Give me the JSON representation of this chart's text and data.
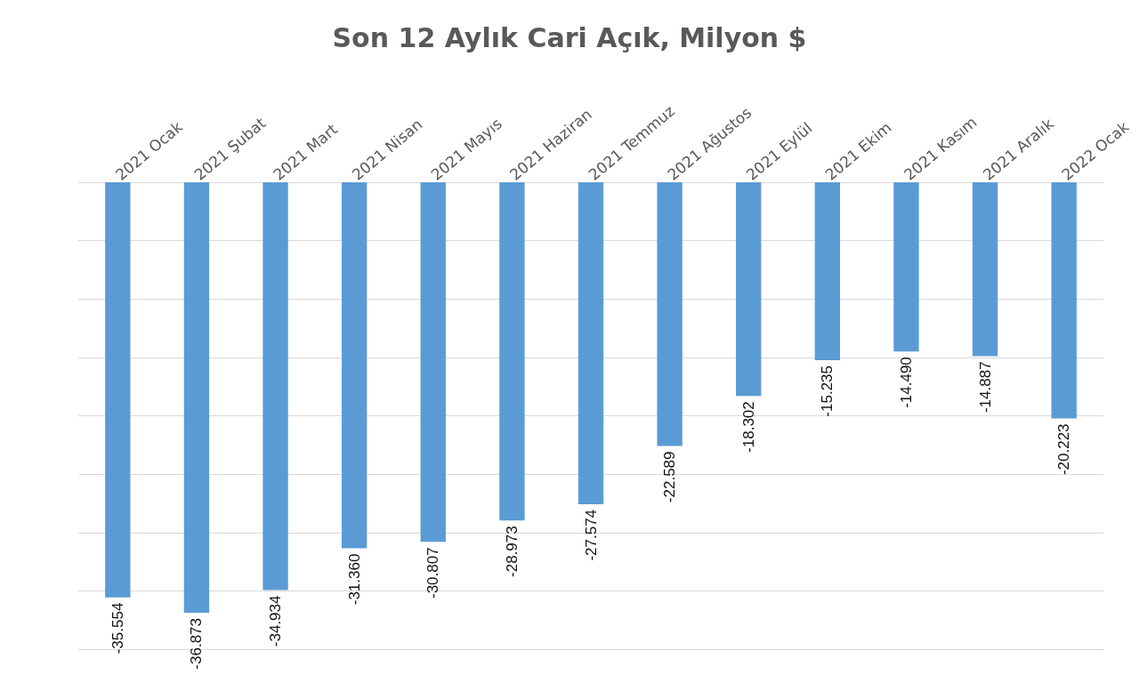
{
  "chart_data": {
    "type": "bar",
    "title": "Son 12 Aylık Cari Açık, Milyon $",
    "categories": [
      "2021 Ocak",
      "2021 Şubat",
      "2021 Mart",
      "2021 Nisan",
      "2021 Mayıs",
      "2021 Haziran",
      "2021 Temmuz",
      "2021 Ağustos",
      "2021 Eylül",
      "2021 Ekim",
      "2021 Kasım",
      "2021 Aralık",
      "2022 Ocak"
    ],
    "values": [
      -35554,
      -36873,
      -34934,
      -31360,
      -30807,
      -28973,
      -27574,
      -22589,
      -18302,
      -15235,
      -14490,
      -14887,
      -20223
    ],
    "value_labels": [
      "-35.554",
      "-36.873",
      "-34.934",
      "-31.360",
      "-30.807",
      "-28.973",
      "-27.574",
      "-22.589",
      "-18.302",
      "-15.235",
      "-14.490",
      "-14.887",
      "-20.223"
    ],
    "color": "#5b9bd5",
    "ylim": [
      -40000,
      0
    ],
    "yticks": [
      {
        "value": -40000,
        "label": null
      },
      {
        "value": -35000,
        "label": null
      },
      {
        "value": -30000,
        "label": null
      },
      {
        "value": -25000,
        "label": null
      },
      {
        "value": -20000,
        "label": null
      },
      {
        "value": -15000,
        "label": null
      },
      {
        "value": -10000,
        "label": null
      },
      {
        "value": -5000,
        "label": null
      },
      {
        "value": 0,
        "label": null
      }
    ],
    "grid": true,
    "tick_labels": "x"
  }
}
